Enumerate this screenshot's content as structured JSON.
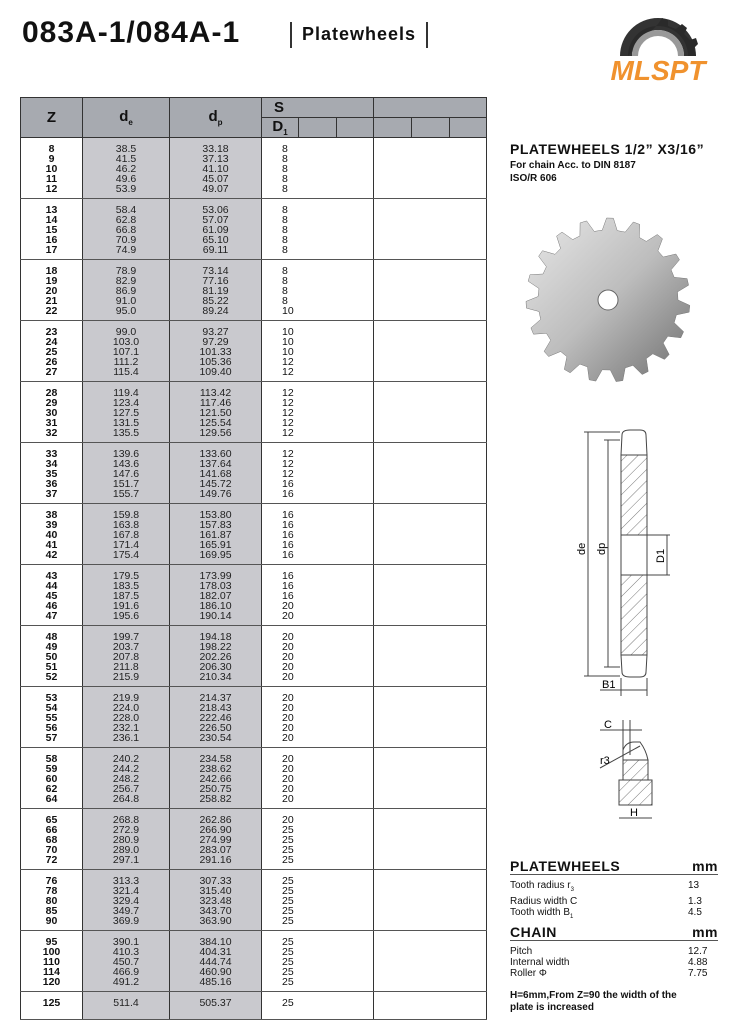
{
  "header": {
    "title": "083A-1/084A-1",
    "subtitle": "Platewheels",
    "logo_text": "MLSPT",
    "logo_color": "#f0922e"
  },
  "table": {
    "headers": {
      "z": "Z",
      "de": "d",
      "de_sub": "e",
      "dp": "d",
      "dp_sub": "p",
      "s": "S",
      "d1": "D",
      "d1_sub": "1"
    },
    "groups": [
      [
        [
          "8",
          "38.5",
          "33.18",
          "8"
        ],
        [
          "9",
          "41.5",
          "37.13",
          "8"
        ],
        [
          "10",
          "46.2",
          "41.10",
          "8"
        ],
        [
          "11",
          "49.6",
          "45.07",
          "8"
        ],
        [
          "12",
          "53.9",
          "49.07",
          "8"
        ]
      ],
      [
        [
          "13",
          "58.4",
          "53.06",
          "8"
        ],
        [
          "14",
          "62.8",
          "57.07",
          "8"
        ],
        [
          "15",
          "66.8",
          "61.09",
          "8"
        ],
        [
          "16",
          "70.9",
          "65.10",
          "8"
        ],
        [
          "17",
          "74.9",
          "69.11",
          "8"
        ]
      ],
      [
        [
          "18",
          "78.9",
          "73.14",
          "8"
        ],
        [
          "19",
          "82.9",
          "77.16",
          "8"
        ],
        [
          "20",
          "86.9",
          "81.19",
          "8"
        ],
        [
          "21",
          "91.0",
          "85.22",
          "8"
        ],
        [
          "22",
          "95.0",
          "89.24",
          "10"
        ]
      ],
      [
        [
          "23",
          "99.0",
          "93.27",
          "10"
        ],
        [
          "24",
          "103.0",
          "97.29",
          "10"
        ],
        [
          "25",
          "107.1",
          "101.33",
          "10"
        ],
        [
          "26",
          "111.2",
          "105.36",
          "12"
        ],
        [
          "27",
          "115.4",
          "109.40",
          "12"
        ]
      ],
      [
        [
          "28",
          "119.4",
          "113.42",
          "12"
        ],
        [
          "29",
          "123.4",
          "117.46",
          "12"
        ],
        [
          "30",
          "127.5",
          "121.50",
          "12"
        ],
        [
          "31",
          "131.5",
          "125.54",
          "12"
        ],
        [
          "32",
          "135.5",
          "129.56",
          "12"
        ]
      ],
      [
        [
          "33",
          "139.6",
          "133.60",
          "12"
        ],
        [
          "34",
          "143.6",
          "137.64",
          "12"
        ],
        [
          "35",
          "147.6",
          "141.68",
          "12"
        ],
        [
          "36",
          "151.7",
          "145.72",
          "16"
        ],
        [
          "37",
          "155.7",
          "149.76",
          "16"
        ]
      ],
      [
        [
          "38",
          "159.8",
          "153.80",
          "16"
        ],
        [
          "39",
          "163.8",
          "157.83",
          "16"
        ],
        [
          "40",
          "167.8",
          "161.87",
          "16"
        ],
        [
          "41",
          "171.4",
          "165.91",
          "16"
        ],
        [
          "42",
          "175.4",
          "169.95",
          "16"
        ]
      ],
      [
        [
          "43",
          "179.5",
          "173.99",
          "16"
        ],
        [
          "44",
          "183.5",
          "178.03",
          "16"
        ],
        [
          "45",
          "187.5",
          "182.07",
          "16"
        ],
        [
          "46",
          "191.6",
          "186.10",
          "20"
        ],
        [
          "47",
          "195.6",
          "190.14",
          "20"
        ]
      ],
      [
        [
          "48",
          "199.7",
          "194.18",
          "20"
        ],
        [
          "49",
          "203.7",
          "198.22",
          "20"
        ],
        [
          "50",
          "207.8",
          "202.26",
          "20"
        ],
        [
          "51",
          "211.8",
          "206.30",
          "20"
        ],
        [
          "52",
          "215.9",
          "210.34",
          "20"
        ]
      ],
      [
        [
          "53",
          "219.9",
          "214.37",
          "20"
        ],
        [
          "54",
          "224.0",
          "218.43",
          "20"
        ],
        [
          "55",
          "228.0",
          "222.46",
          "20"
        ],
        [
          "56",
          "232.1",
          "226.50",
          "20"
        ],
        [
          "57",
          "236.1",
          "230.54",
          "20"
        ]
      ],
      [
        [
          "58",
          "240.2",
          "234.58",
          "20"
        ],
        [
          "59",
          "244.2",
          "238.62",
          "20"
        ],
        [
          "60",
          "248.2",
          "242.66",
          "20"
        ],
        [
          "62",
          "256.7",
          "250.75",
          "20"
        ],
        [
          "64",
          "264.8",
          "258.82",
          "20"
        ]
      ],
      [
        [
          "65",
          "268.8",
          "262.86",
          "20"
        ],
        [
          "66",
          "272.9",
          "266.90",
          "25"
        ],
        [
          "68",
          "280.9",
          "274.99",
          "25"
        ],
        [
          "70",
          "289.0",
          "283.07",
          "25"
        ],
        [
          "72",
          "297.1",
          "291.16",
          "25"
        ]
      ],
      [
        [
          "76",
          "313.3",
          "307.33",
          "25"
        ],
        [
          "78",
          "321.4",
          "315.40",
          "25"
        ],
        [
          "80",
          "329.4",
          "323.48",
          "25"
        ],
        [
          "85",
          "349.7",
          "343.70",
          "25"
        ],
        [
          "90",
          "369.9",
          "363.90",
          "25"
        ]
      ],
      [
        [
          "95",
          "390.1",
          "384.10",
          "25"
        ],
        [
          "100",
          "410.3",
          "404.31",
          "25"
        ],
        [
          "110",
          "450.7",
          "444.74",
          "25"
        ],
        [
          "114",
          "466.9",
          "460.90",
          "25"
        ],
        [
          "120",
          "491.2",
          "485.16",
          "25"
        ]
      ],
      [
        [
          "125",
          "511.4",
          "505.37",
          "25"
        ]
      ]
    ]
  },
  "product": {
    "title": "PLATEWHEELS 1/2”  X3/16”",
    "line1": "For chain Acc. to DIN 8187",
    "line2": "ISO/R 606"
  },
  "diagram": {
    "de": "de",
    "dp": "dp",
    "d1": "D1",
    "b1": "B1",
    "c": "C",
    "r3": "r3",
    "h": "H"
  },
  "platewheels": {
    "title": "PLATEWHEELS",
    "unit": "mm",
    "rows": [
      {
        "label": "Tooth radius r",
        "sub": "3",
        "value": "13"
      },
      {
        "label": "Radius width C",
        "sub": "",
        "value": "1.3"
      },
      {
        "label": "Tooth width B",
        "sub": "1",
        "value": "4.5"
      }
    ]
  },
  "chain": {
    "title": "CHAIN",
    "unit": "mm",
    "rows": [
      {
        "label": "Pitch",
        "value": "12.7"
      },
      {
        "label": "Internal width",
        "value": "4.88"
      },
      {
        "label": "Roller Φ",
        "value": "7.75"
      }
    ]
  },
  "note": "H=6mm,From Z=90 the width of the plate is increased"
}
